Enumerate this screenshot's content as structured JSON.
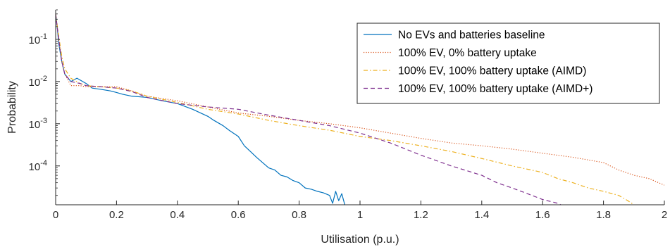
{
  "chart_data": {
    "type": "line",
    "xlabel": "Utilisation (p.u.)",
    "ylabel": "Probability",
    "xlim": [
      0,
      2
    ],
    "ylim": [
      1.2e-05,
      0.5
    ],
    "yscale": "log",
    "grid": false,
    "legend_position": "top-right",
    "x_ticks": [
      0,
      0.2,
      0.4,
      0.6,
      0.8,
      1,
      1.2,
      1.4,
      1.6,
      1.8,
      2
    ],
    "x_tick_labels": [
      "0",
      "0.2",
      "0.4",
      "0.6",
      "0.8",
      "1",
      "1.2",
      "1.4",
      "1.6",
      "1.8",
      "2"
    ],
    "y_ticks": [
      0.0001,
      0.001,
      0.01,
      0.1
    ],
    "y_tick_labels": [
      {
        "base": "10",
        "exp": "-4"
      },
      {
        "base": "10",
        "exp": "-3"
      },
      {
        "base": "10",
        "exp": "-2"
      },
      {
        "base": "10",
        "exp": "-1"
      }
    ],
    "series": [
      {
        "name": "No EVs and batteries baseline",
        "color": "#0072BD",
        "dash": "solid",
        "x": [
          0,
          0.005,
          0.01,
          0.02,
          0.03,
          0.05,
          0.07,
          0.1,
          0.12,
          0.15,
          0.18,
          0.2,
          0.22,
          0.25,
          0.3,
          0.35,
          0.4,
          0.45,
          0.5,
          0.52,
          0.55,
          0.57,
          0.6,
          0.62,
          0.64,
          0.66,
          0.68,
          0.7,
          0.72,
          0.74,
          0.76,
          0.78,
          0.8,
          0.82,
          0.84,
          0.86,
          0.88,
          0.9,
          0.91,
          0.92,
          0.93,
          0.94,
          0.95
        ],
        "y": [
          0.4,
          0.2,
          0.08,
          0.03,
          0.015,
          0.01,
          0.012,
          0.009,
          0.007,
          0.0065,
          0.006,
          0.0055,
          0.005,
          0.0045,
          0.0042,
          0.0035,
          0.003,
          0.0022,
          0.0015,
          0.0012,
          0.0009,
          0.0007,
          0.0005,
          0.0003,
          0.00022,
          0.00016,
          0.00012,
          9e-05,
          8e-05,
          6e-05,
          5.5e-05,
          4.5e-05,
          4e-05,
          3e-05,
          2.8e-05,
          2.5e-05,
          2.3e-05,
          2e-05,
          1.3e-05,
          2.5e-05,
          1.5e-05,
          2.2e-05,
          1.2e-05
        ]
      },
      {
        "name": "100% EV, 0% battery uptake",
        "color": "#D95319",
        "dash": "dotted",
        "x": [
          0,
          0.01,
          0.02,
          0.03,
          0.05,
          0.08,
          0.1,
          0.15,
          0.2,
          0.25,
          0.3,
          0.4,
          0.5,
          0.6,
          0.7,
          0.8,
          0.9,
          1.0,
          1.1,
          1.2,
          1.3,
          1.4,
          1.5,
          1.6,
          1.7,
          1.8,
          1.85,
          1.9,
          1.95,
          2.0
        ],
        "y": [
          0.4,
          0.1,
          0.03,
          0.015,
          0.008,
          0.008,
          0.0075,
          0.0075,
          0.0075,
          0.006,
          0.0045,
          0.0035,
          0.0025,
          0.0018,
          0.0015,
          0.0012,
          0.001,
          0.0008,
          0.0006,
          0.00045,
          0.00035,
          0.0003,
          0.00025,
          0.0002,
          0.00016,
          0.00012,
          8e-05,
          6e-05,
          5e-05,
          3.5e-05
        ]
      },
      {
        "name": "100% EV, 100% battery uptake (AIMD)",
        "color": "#EDB120",
        "dash": "dashdot",
        "x": [
          0,
          0.01,
          0.02,
          0.03,
          0.05,
          0.08,
          0.1,
          0.15,
          0.2,
          0.25,
          0.3,
          0.4,
          0.5,
          0.6,
          0.7,
          0.8,
          0.9,
          1.0,
          1.1,
          1.2,
          1.3,
          1.4,
          1.5,
          1.6,
          1.65,
          1.7,
          1.75,
          1.8,
          1.85,
          1.88,
          1.9
        ],
        "y": [
          0.4,
          0.12,
          0.04,
          0.02,
          0.012,
          0.009,
          0.008,
          0.0075,
          0.007,
          0.006,
          0.0045,
          0.0032,
          0.0022,
          0.0017,
          0.0012,
          0.0009,
          0.0007,
          0.0005,
          0.0004,
          0.0003,
          0.00022,
          0.00015,
          0.0001,
          7e-05,
          5e-05,
          4e-05,
          3e-05,
          2.5e-05,
          2e-05,
          1.5e-05,
          1.2e-05
        ]
      },
      {
        "name": "100% EV, 100% battery uptake (AIMD+)",
        "color": "#7E2F8E",
        "dash": "dashed",
        "x": [
          0,
          0.01,
          0.02,
          0.03,
          0.05,
          0.08,
          0.1,
          0.15,
          0.2,
          0.25,
          0.3,
          0.4,
          0.5,
          0.6,
          0.7,
          0.8,
          0.9,
          1.0,
          1.1,
          1.2,
          1.3,
          1.4,
          1.45,
          1.5,
          1.55,
          1.6,
          1.65,
          1.66
        ],
        "y": [
          0.4,
          0.1,
          0.03,
          0.015,
          0.01,
          0.009,
          0.008,
          0.0075,
          0.007,
          0.0058,
          0.0042,
          0.003,
          0.0025,
          0.0022,
          0.0016,
          0.0012,
          0.0009,
          0.0006,
          0.00035,
          0.00018,
          0.0001,
          6e-05,
          4e-05,
          3e-05,
          2.2e-05,
          1.6e-05,
          1.3e-05,
          1.2e-05
        ]
      }
    ]
  }
}
